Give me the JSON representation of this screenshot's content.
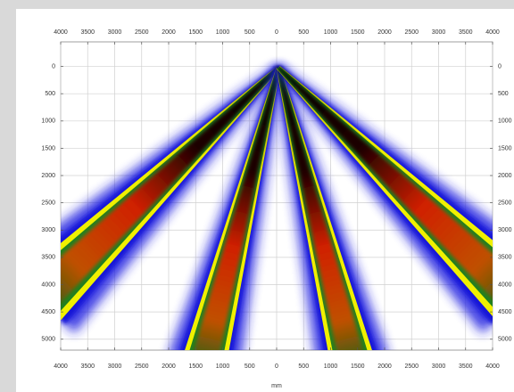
{
  "chart_data": {
    "type": "heatmap",
    "x_label": "mm",
    "xlim": [
      -4000,
      4000
    ],
    "xticks": [
      {
        "value": -4000,
        "label": "4000"
      },
      {
        "value": -3500,
        "label": "3500"
      },
      {
        "value": -3000,
        "label": "3000"
      },
      {
        "value": -2500,
        "label": "2500"
      },
      {
        "value": -2000,
        "label": "2000"
      },
      {
        "value": -1500,
        "label": "1500"
      },
      {
        "value": -1000,
        "label": "1000"
      },
      {
        "value": -500,
        "label": "500"
      },
      0,
      500,
      1000,
      1500,
      2000,
      2500,
      3000,
      3500,
      4000
    ],
    "ylim": [
      -450,
      5200
    ],
    "y_inverted": true,
    "yticks": [
      0,
      500,
      1000,
      1500,
      2000,
      2500,
      3000,
      3500,
      4000,
      4500,
      5000
    ],
    "grid": true
  }
}
